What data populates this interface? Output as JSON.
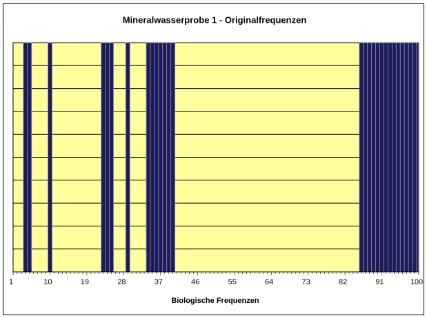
{
  "chart_data": {
    "type": "bar",
    "title": "Mineralwasserprobe 1 - Originalfrequenzen",
    "x_label": "Biologische Frequenzen",
    "categories": [
      "1",
      null,
      null,
      null,
      null,
      null,
      null,
      null,
      null,
      "10",
      null,
      null,
      null,
      null,
      null,
      null,
      null,
      null,
      "19",
      null,
      null,
      null,
      null,
      null,
      null,
      null,
      null,
      "28",
      null,
      null,
      null,
      null,
      null,
      null,
      null,
      null,
      "37",
      null,
      null,
      null,
      null,
      null,
      null,
      null,
      null,
      "46",
      null,
      null,
      null,
      null,
      null,
      null,
      null,
      null,
      "55",
      null,
      null,
      null,
      null,
      null,
      null,
      null,
      null,
      "64",
      null,
      null,
      null,
      null,
      null,
      null,
      null,
      null,
      "73",
      null,
      null,
      null,
      null,
      null,
      null,
      null,
      null,
      "82",
      null,
      null,
      null,
      null,
      null,
      null,
      null,
      null,
      "91",
      null,
      null,
      null,
      null,
      null,
      null,
      null,
      null,
      "100"
    ],
    "values": [
      0,
      0,
      0,
      10,
      10,
      0,
      0,
      0,
      0,
      10,
      0,
      0,
      0,
      0,
      0,
      0,
      0,
      0,
      0,
      0,
      0,
      0,
      10,
      10,
      10,
      0,
      0,
      0,
      10,
      0,
      0,
      0,
      0,
      10,
      10,
      10,
      10,
      10,
      10,
      10,
      0,
      0,
      0,
      0,
      0,
      0,
      0,
      0,
      0,
      0,
      0,
      0,
      0,
      0,
      0,
      0,
      0,
      0,
      0,
      0,
      0,
      0,
      0,
      0,
      0,
      0,
      0,
      0,
      0,
      0,
      0,
      0,
      0,
      0,
      0,
      0,
      0,
      0,
      0,
      0,
      0,
      0,
      0,
      0,
      0,
      10,
      10,
      10,
      10,
      10,
      10,
      10,
      10,
      10,
      10,
      10,
      10,
      10,
      10,
      10
    ],
    "color": "#1c1c5c",
    "background": "#ffff9e",
    "ylim": [
      0,
      10
    ],
    "yticks": [
      0,
      1,
      2,
      3,
      4,
      5,
      6,
      7,
      8,
      9,
      10
    ],
    "grid": true
  }
}
